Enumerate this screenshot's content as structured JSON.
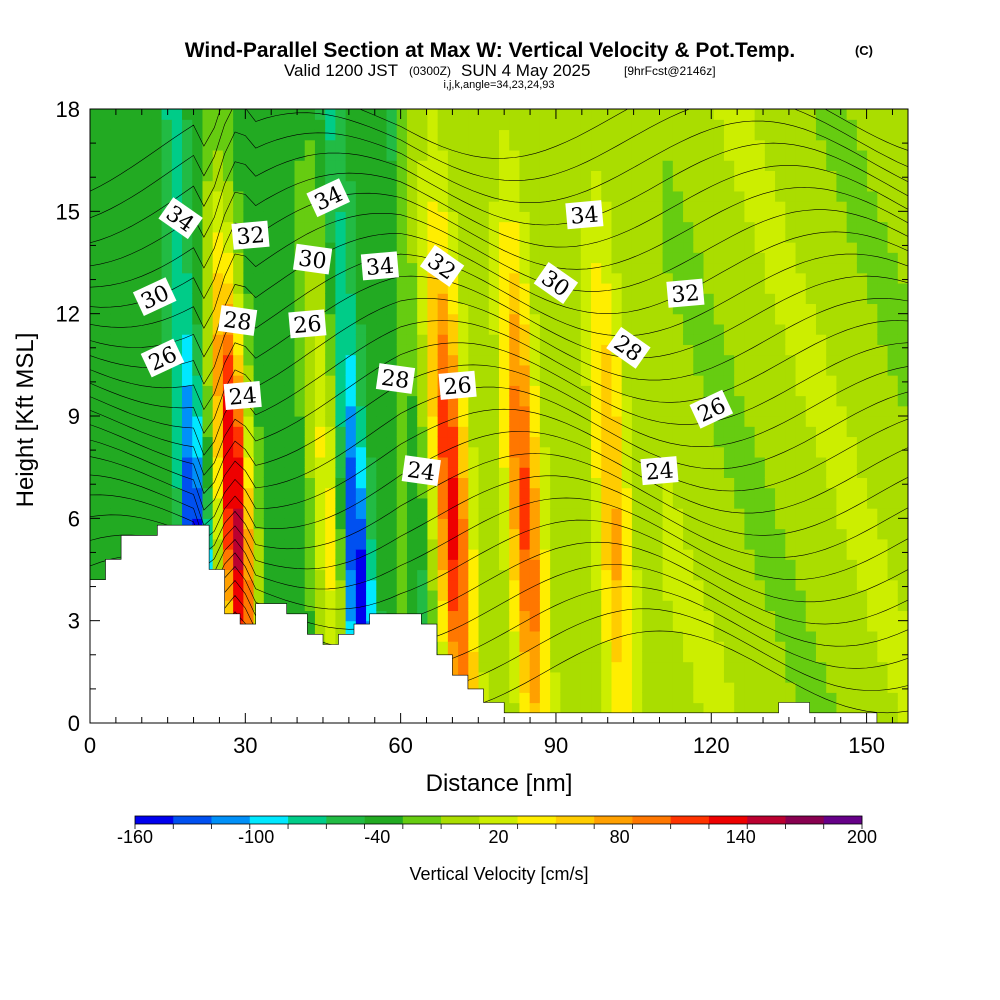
{
  "title": {
    "main": "Wind-Parallel Section at Max W: Vertical Velocity & Pot.Temp.",
    "copyright": "(C)",
    "valid_prefix": "Valid 1200 JST",
    "valid_utc": "(0300Z)",
    "valid_suffix": "SUN 4 May 2025",
    "forecast": "[9hrFcst@2146z]",
    "indices": "i,j,k,angle=34,23,24,93"
  },
  "chart_data": {
    "type": "heatmap",
    "xlabel": "Distance [nm]",
    "ylabel": "Height [Kft MSL]",
    "xlim": [
      0,
      158
    ],
    "ylim": [
      0,
      18
    ],
    "xticks": [
      0,
      30,
      60,
      90,
      120,
      150
    ],
    "yticks": [
      0,
      3,
      6,
      9,
      12,
      15,
      18
    ],
    "colorbar": {
      "label": "Vertical Velocity [cm/s]",
      "ticks": [
        "-160",
        "-100",
        "-40",
        "20",
        "80",
        "140",
        "200"
      ],
      "bins": [
        -160,
        -140,
        -120,
        -100,
        -80,
        -60,
        -40,
        -20,
        0,
        20,
        40,
        60,
        80,
        100,
        120,
        140,
        160,
        180,
        200
      ],
      "colors": [
        "#0000ee",
        "#0050f0",
        "#0090f8",
        "#00e8ff",
        "#00cc88",
        "#22bb44",
        "#22aa22",
        "#66cc11",
        "#aadd00",
        "#ccee00",
        "#ffee00",
        "#ffcc00",
        "#ffa000",
        "#ff7700",
        "#ff3300",
        "#ee0000",
        "#bb0030",
        "#880050",
        "#660088"
      ]
    },
    "updrafts": [
      {
        "x": 27,
        "w": 200
      },
      {
        "x": 45,
        "w": 80
      },
      {
        "x": 69,
        "w": 140
      },
      {
        "x": 83,
        "w": 120
      },
      {
        "x": 100,
        "w": 80
      }
    ],
    "downdrafts": [
      {
        "x": 19,
        "w": -160
      },
      {
        "x": 50,
        "w": -160
      },
      {
        "x": 62,
        "w": -60
      }
    ],
    "terrain": [
      {
        "x": 0,
        "h": 4.2
      },
      {
        "x": 3,
        "h": 4.8
      },
      {
        "x": 6,
        "h": 5.5
      },
      {
        "x": 13,
        "h": 5.8
      },
      {
        "x": 23,
        "h": 4.5
      },
      {
        "x": 26,
        "h": 3.2
      },
      {
        "x": 29,
        "h": 2.9
      },
      {
        "x": 32,
        "h": 3.5
      },
      {
        "x": 38,
        "h": 3.2
      },
      {
        "x": 42,
        "h": 2.6
      },
      {
        "x": 45,
        "h": 2.3
      },
      {
        "x": 48,
        "h": 2.6
      },
      {
        "x": 51,
        "h": 2.9
      },
      {
        "x": 54,
        "h": 3.2
      },
      {
        "x": 64,
        "h": 2.9
      },
      {
        "x": 67,
        "h": 2.0
      },
      {
        "x": 70,
        "h": 1.4
      },
      {
        "x": 73,
        "h": 1.0
      },
      {
        "x": 76,
        "h": 0.6
      },
      {
        "x": 80,
        "h": 0.3
      },
      {
        "x": 133,
        "h": 0.6
      },
      {
        "x": 139,
        "h": 0.3
      },
      {
        "x": 152,
        "h": 0.0
      }
    ],
    "contour_labels": [
      {
        "text": "34",
        "x": 17.5,
        "y": 14.8
      },
      {
        "text": "32",
        "x": 31,
        "y": 14.3
      },
      {
        "text": "34",
        "x": 46,
        "y": 15.4
      },
      {
        "text": "30",
        "x": 43,
        "y": 13.6
      },
      {
        "text": "34",
        "x": 56,
        "y": 13.4
      },
      {
        "text": "32",
        "x": 68,
        "y": 13.4
      },
      {
        "text": "34",
        "x": 95.5,
        "y": 14.9
      },
      {
        "text": "30",
        "x": 12.5,
        "y": 12.5
      },
      {
        "text": "28",
        "x": 28.5,
        "y": 11.8
      },
      {
        "text": "26",
        "x": 42,
        "y": 11.7
      },
      {
        "text": "30",
        "x": 90,
        "y": 12.9
      },
      {
        "text": "32",
        "x": 115,
        "y": 12.6
      },
      {
        "text": "26",
        "x": 14,
        "y": 10.7
      },
      {
        "text": "28",
        "x": 59,
        "y": 10.1
      },
      {
        "text": "26",
        "x": 71,
        "y": 9.9
      },
      {
        "text": "28",
        "x": 104,
        "y": 11.0
      },
      {
        "text": "24",
        "x": 29.5,
        "y": 9.6
      },
      {
        "text": "26",
        "x": 120,
        "y": 9.2
      },
      {
        "text": "24",
        "x": 64,
        "y": 7.4
      },
      {
        "text": "24",
        "x": 110,
        "y": 7.4
      }
    ]
  }
}
